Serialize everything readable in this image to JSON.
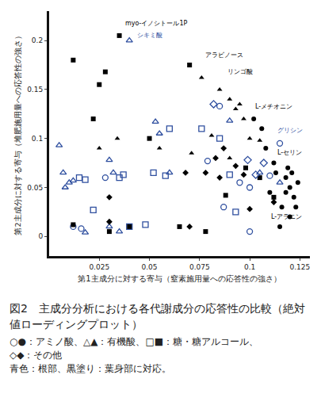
{
  "chart_data": {
    "type": "scatter",
    "title": "図2　主成分分析における各代謝成分の応答性の比較（絶対値ローディングプロット）",
    "notes": [
      "○●：アミノ酸、△▲：有機酸、□■：糖・糖アルコール、",
      "◇◆：その他",
      "青色：根部、黒塗り：葉身部に対応。"
    ],
    "x_label": "第1主成分に対する寄与（窒素施用量への応答性の強さ）",
    "y_label": "第2主成分に対する寄与（堆肥施用量への応答性の強さ）",
    "xlim": [
      0,
      0.13
    ],
    "xticks": [
      0.025,
      0.05,
      0.075,
      0.1,
      0.125
    ],
    "ylim": [
      -0.02,
      0.23
    ],
    "yticks": [
      0,
      0.05,
      0.1,
      0.15,
      0.2
    ],
    "grid": false,
    "series": [
      {
        "marker": "circle-open",
        "color": "#2f4f9f",
        "x": [
          0.012,
          0.016,
          0.028,
          0.085,
          0.095,
          0.087,
          0.1,
          0.115,
          0.11,
          0.1,
          0.079
        ],
        "values": [
          0.01,
          0.008,
          0.06,
          0.133,
          0.055,
          0.03,
          0.05,
          0.095,
          0.062,
          0.005,
          0.077
        ]
      },
      {
        "marker": "circle",
        "color": "#000000",
        "x": [
          0.102,
          0.106,
          0.112,
          0.115,
          0.118,
          0.12,
          0.122,
          0.116,
          0.12,
          0.123,
          0.118,
          0.124,
          0.11,
          0.113,
          0.108,
          0.119,
          0.121
        ],
        "values": [
          0.12,
          0.11,
          0.075,
          0.01,
          0.06,
          0.05,
          0.04,
          0.03,
          0.02,
          0.03,
          0.045,
          0.055,
          0.045,
          0.065,
          0.09,
          0.07,
          0.065
        ]
      },
      {
        "marker": "triangle-up-open",
        "color": "#2f4f9f",
        "x": [
          0.005,
          0.007,
          0.008,
          0.01,
          0.012,
          0.018,
          0.03,
          0.032,
          0.035,
          0.04,
          0.053,
          0.055,
          0.06,
          0.09,
          0.105,
          0.03,
          0.115
        ],
        "values": [
          0.093,
          0.065,
          0.05,
          0.055,
          0.057,
          0.004,
          0.078,
          0.065,
          0.005,
          0.2,
          0.117,
          0.105,
          0.065,
          0.118,
          0.065,
          0.01,
          0.055
        ]
      },
      {
        "marker": "triangle-up",
        "color": "#000000",
        "x": [
          0.025,
          0.034,
          0.055,
          0.076,
          0.085,
          0.09,
          0.093,
          0.097,
          0.1,
          0.09,
          0.105,
          0.095,
          0.071,
          0.081
        ],
        "values": [
          0.09,
          0.1,
          0.09,
          0.162,
          0.15,
          0.14,
          0.13,
          0.12,
          0.1,
          0.08,
          0.098,
          0.135,
          0.085,
          0.103
        ]
      },
      {
        "marker": "square-open",
        "color": "#2f4f9f",
        "x": [
          0.015,
          0.018,
          0.022,
          0.035,
          0.037,
          0.048,
          0.052,
          0.06,
          0.058,
          0.076,
          0.085,
          0.09,
          0.093,
          0.04
        ],
        "values": [
          0.06,
          0.058,
          0.027,
          0.06,
          0.063,
          0.012,
          0.065,
          0.11,
          0.062,
          0.11,
          0.1,
          0.063,
          0.025,
          0.01
        ]
      },
      {
        "marker": "square",
        "color": "#000000",
        "x": [
          0.012,
          0.025,
          0.028,
          0.035,
          0.022,
          0.07,
          0.05,
          0.065,
          0.04,
          0.03,
          0.012,
          0.098,
          0.078,
          0.105,
          0.112,
          0.088
        ],
        "values": [
          0.18,
          0.155,
          0.168,
          0.205,
          0.12,
          0.175,
          0.1,
          0.01,
          0.01,
          0.005,
          0.012,
          0.07,
          0.005,
          0.06,
          0.04,
          0.042
        ]
      },
      {
        "marker": "diamond-open",
        "color": "#2f4f9f",
        "x": [
          0.082,
          0.099,
          0.103,
          0.107
        ],
        "values": [
          0.135,
          0.078,
          0.063,
          0.075
        ]
      },
      {
        "marker": "diamond",
        "color": "#000000",
        "x": [
          0.03,
          0.03,
          0.068,
          0.078,
          0.083,
          0.087,
          0.093,
          0.097,
          0.1,
          0.085,
          0.07,
          0.112
        ],
        "values": [
          0.04,
          0.015,
          0.065,
          0.065,
          0.08,
          0.09,
          0.072,
          0.063,
          0.028,
          0.06,
          0.01,
          0.035
        ]
      }
    ],
    "annotations": [
      {
        "text": "myo-イノシトール1P",
        "x": 0.037,
        "y": 0.212,
        "color": "#000000"
      },
      {
        "text": "シキミ酸",
        "x": 0.043,
        "y": 0.2,
        "color": "#2f4f9f"
      },
      {
        "text": "アラビノース",
        "x": 0.077,
        "y": 0.18,
        "color": "#000000"
      },
      {
        "text": "リンゴ酸",
        "x": 0.088,
        "y": 0.163,
        "color": "#000000"
      },
      {
        "text": "L-メチオニン",
        "x": 0.102,
        "y": 0.127,
        "color": "#000000"
      },
      {
        "text": "グリシン",
        "x": 0.113,
        "y": 0.103,
        "color": "#2f4f9f"
      },
      {
        "text": "L-セリン",
        "x": 0.113,
        "y": 0.08,
        "color": "#000000"
      },
      {
        "text": "L-アラニン",
        "x": 0.11,
        "y": 0.015,
        "color": "#000000"
      }
    ]
  }
}
